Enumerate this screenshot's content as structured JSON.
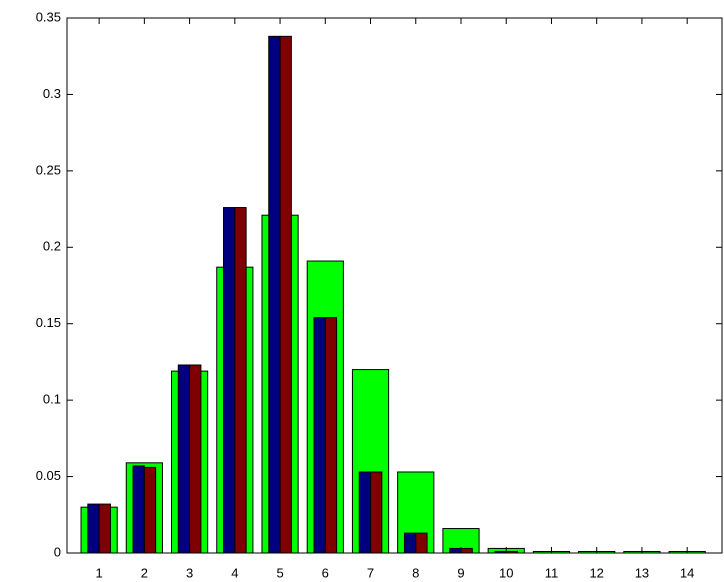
{
  "chart_data": {
    "type": "bar",
    "categories": [
      "1",
      "2",
      "3",
      "4",
      "5",
      "6",
      "7",
      "8",
      "9",
      "10",
      "11",
      "12",
      "13",
      "14"
    ],
    "series": [
      {
        "color": "#00ff00",
        "values": [
          0.03,
          0.059,
          0.119,
          0.187,
          0.221,
          0.191,
          0.12,
          0.053,
          0.016,
          0.003,
          0.001,
          0.001,
          0.001,
          0.001
        ]
      },
      {
        "color": "#00007f",
        "values": [
          0.032,
          0.057,
          0.123,
          0.226,
          0.338,
          0.154,
          0.053,
          0.013,
          0.003,
          0.001,
          0,
          0,
          0,
          0
        ]
      },
      {
        "color": "#7f0000",
        "values": [
          0.032,
          0.056,
          0.123,
          0.226,
          0.338,
          0.154,
          0.053,
          0.013,
          0.003,
          0.001,
          0,
          0,
          0,
          0
        ]
      }
    ],
    "ylim": [
      0,
      0.35
    ],
    "yticks": [
      0,
      0.05,
      0.1,
      0.15,
      0.2,
      0.25,
      0.3,
      0.35
    ]
  }
}
